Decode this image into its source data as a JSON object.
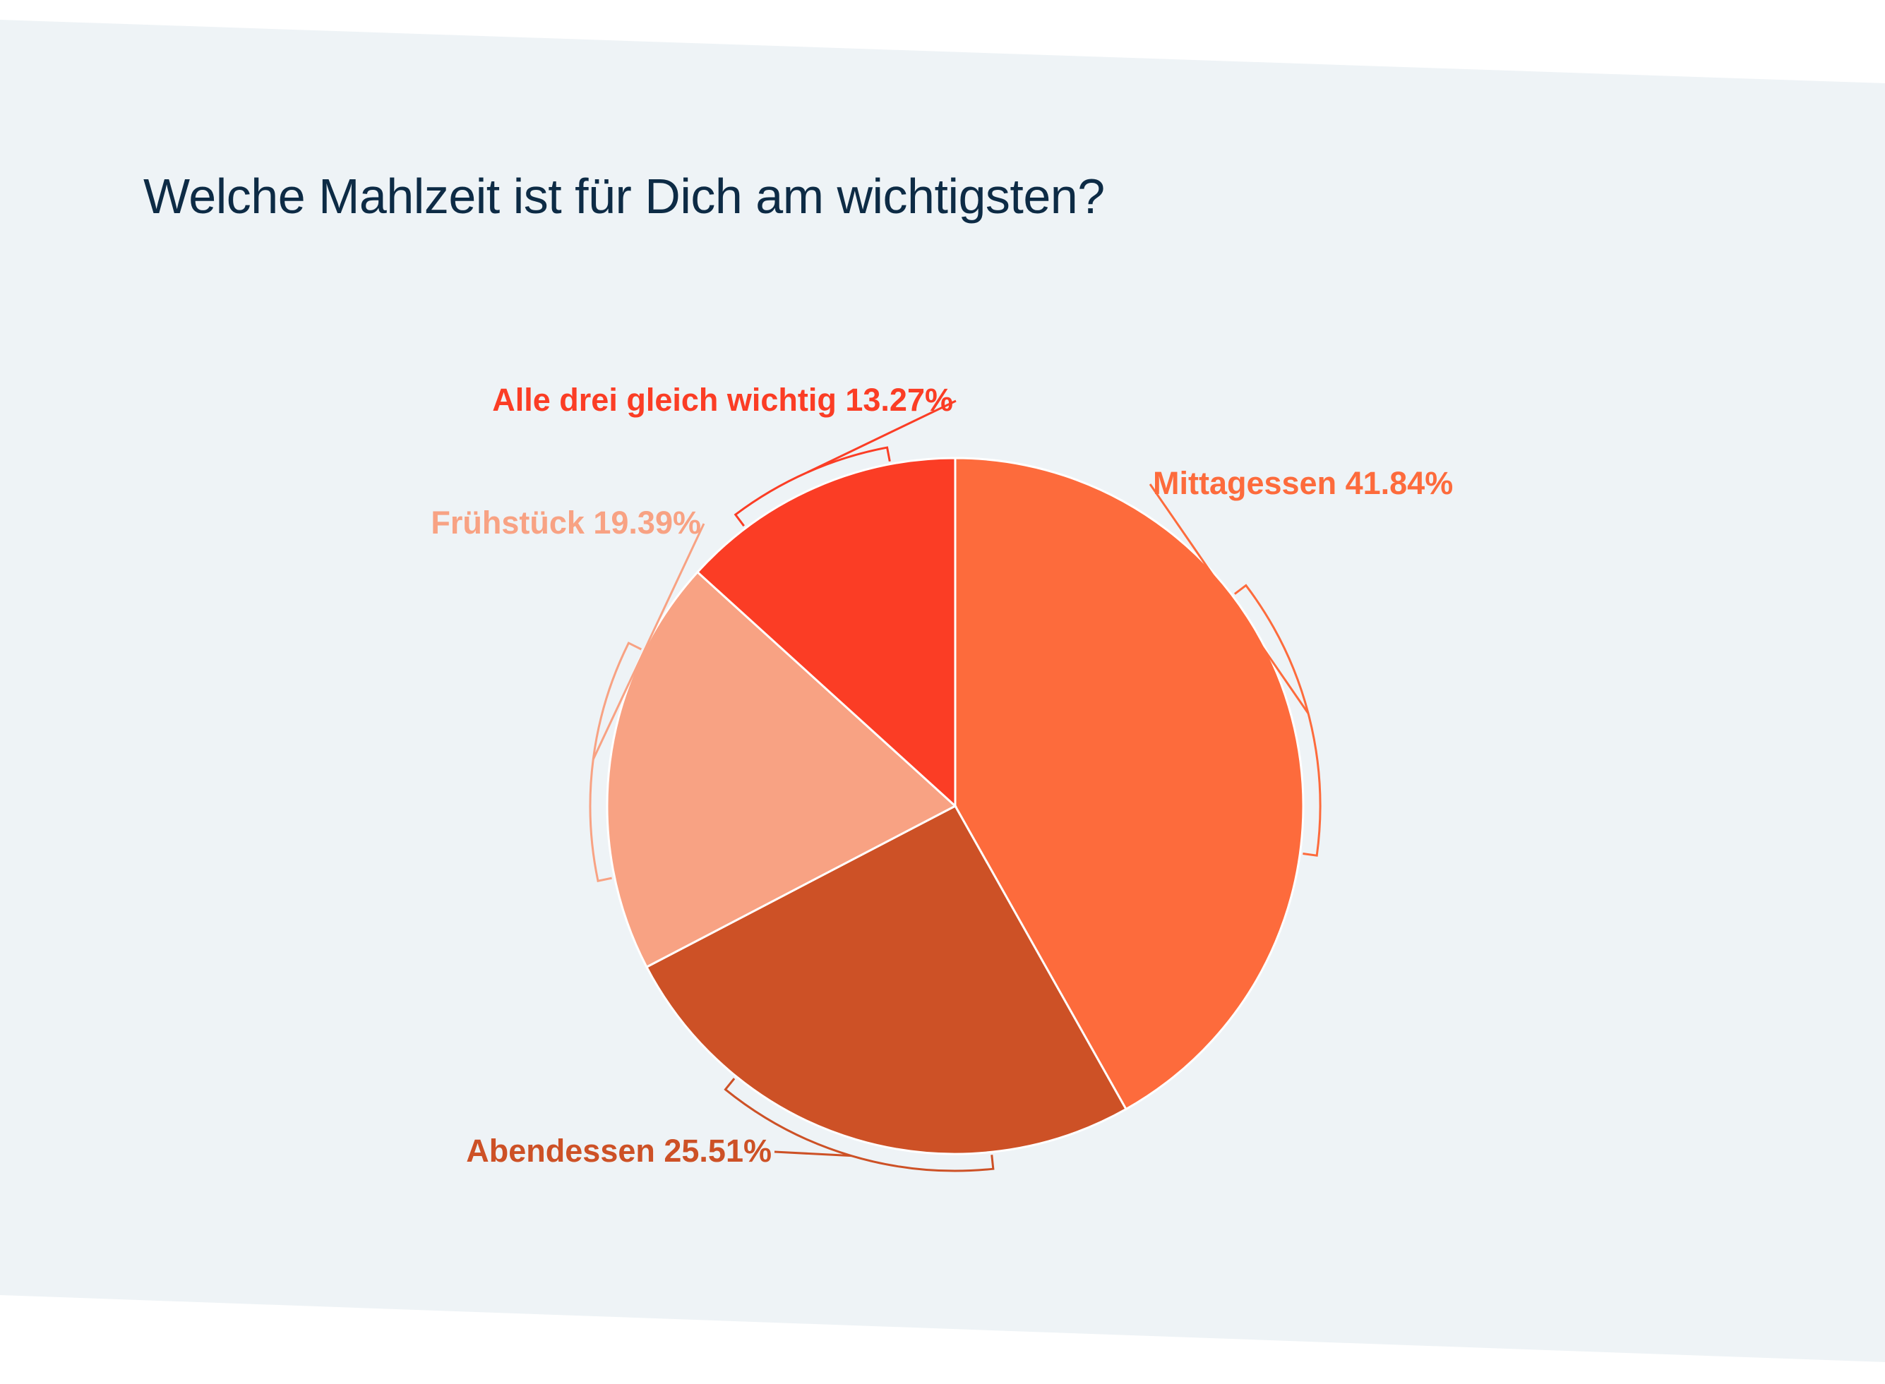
{
  "colors": {
    "background_band": "#eef3f6",
    "title": "#0d2b45",
    "slice_separator": "#ffffff"
  },
  "chart_data": {
    "type": "pie",
    "title": "Welche Mahlzeit ist für Dich am wichtigsten?",
    "start_angle_deg": 0,
    "direction": "clockwise",
    "slices": [
      {
        "label": "Mittagessen",
        "value": 41.84,
        "value_text": "41.84%",
        "color": "#fd6b3c"
      },
      {
        "label": "Abendessen",
        "value": 25.51,
        "value_text": "25.51%",
        "color": "#cd5126"
      },
      {
        "label": "Frühstück",
        "value": 19.39,
        "value_text": "19.39%",
        "color": "#f8a283"
      },
      {
        "label": "Alle drei gleich wichtig",
        "value": 13.27,
        "value_text": "13.27%",
        "color": "#fb3d25"
      }
    ]
  }
}
